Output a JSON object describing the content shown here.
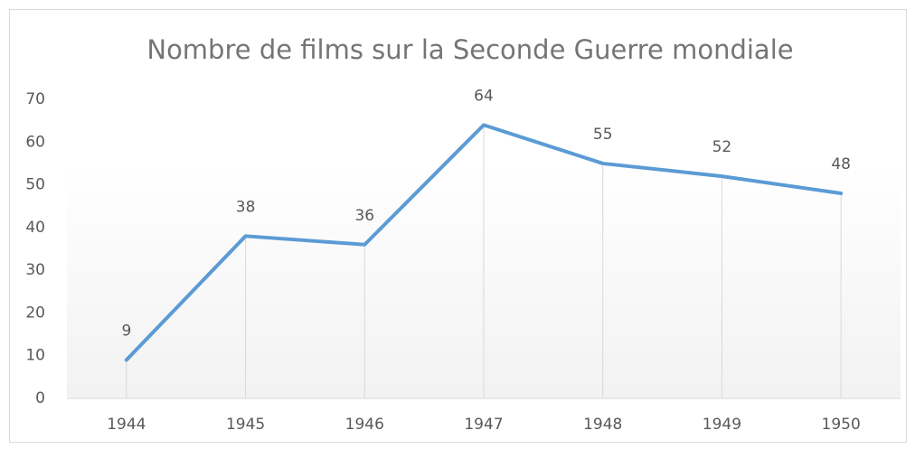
{
  "chart_data": {
    "type": "line",
    "title": "Nombre de films sur la Seconde Guerre mondiale",
    "categories": [
      "1944",
      "1945",
      "1946",
      "1947",
      "1948",
      "1949",
      "1950"
    ],
    "values": [
      9,
      38,
      36,
      64,
      55,
      52,
      48
    ],
    "color": "#5b9bd5",
    "ylim": [
      0,
      70
    ],
    "yticks": [
      0,
      10,
      20,
      30,
      40,
      50,
      60,
      70
    ],
    "drop_lines": true
  }
}
